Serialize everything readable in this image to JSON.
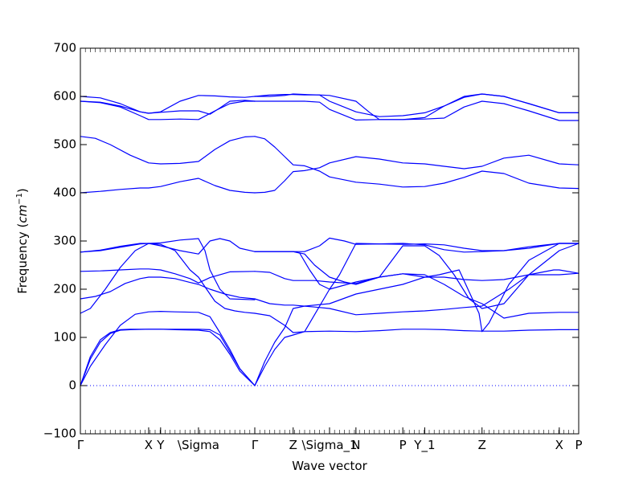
{
  "chart_data": {
    "type": "line",
    "title": "",
    "xlabel": "Wave vector",
    "ylabel": "Frequency (cm⁻¹)",
    "ylabel_main": "Frequency (",
    "ylabel_unit": "cm",
    "ylabel_exp": "−1",
    "ylabel_close": ")",
    "xlim": [
      0,
      1
    ],
    "ylim": [
      -100,
      700
    ],
    "grid": false,
    "legend": "none",
    "line_color": "#0000ff",
    "zero_line_color": "#0000ff",
    "y_ticks": [
      {
        "value": -100,
        "label": "−100"
      },
      {
        "value": 0,
        "label": "0"
      },
      {
        "value": 100,
        "label": "100"
      },
      {
        "value": 200,
        "label": "200"
      },
      {
        "value": 300,
        "label": "300"
      },
      {
        "value": 400,
        "label": "400"
      },
      {
        "value": 500,
        "label": "500"
      },
      {
        "value": 600,
        "label": "600"
      },
      {
        "value": 700,
        "label": "700"
      }
    ],
    "x_ticks": [
      {
        "pos": 0.0,
        "label": "Γ"
      },
      {
        "pos": 0.137,
        "label": "X"
      },
      {
        "pos": 0.161,
        "label": "Y"
      },
      {
        "pos": 0.237,
        "label": "\\Sigma"
      },
      {
        "pos": 0.35,
        "label": "Γ"
      },
      {
        "pos": 0.427,
        "label": "Z"
      },
      {
        "pos": 0.5,
        "label": "\\Sigma_1"
      },
      {
        "pos": 0.553,
        "label": "N"
      },
      {
        "pos": 0.647,
        "label": "P"
      },
      {
        "pos": 0.691,
        "label": "Y_1"
      },
      {
        "pos": 0.806,
        "label": "Z"
      },
      {
        "pos": 0.961,
        "label": "X"
      },
      {
        "pos": 1.0,
        "label": "P"
      }
    ],
    "series": [
      {
        "x": [
          0.0,
          0.02,
          0.04,
          0.06,
          0.08,
          0.1,
          0.137,
          0.161,
          0.19,
          0.237,
          0.26,
          0.28,
          0.3,
          0.32,
          0.35
        ],
        "y": [
          0,
          55,
          90,
          108,
          115,
          116,
          117,
          117,
          116,
          115,
          112,
          95,
          65,
          30,
          0
        ]
      },
      {
        "x": [
          0.0,
          0.02,
          0.04,
          0.06,
          0.08,
          0.1,
          0.137,
          0.161,
          0.19,
          0.237,
          0.26,
          0.28,
          0.3,
          0.32,
          0.35
        ],
        "y": [
          0,
          60,
          95,
          110,
          116,
          117,
          117,
          117,
          117,
          117,
          116,
          105,
          70,
          35,
          0
        ]
      },
      {
        "x": [
          0.0,
          0.02,
          0.05,
          0.08,
          0.11,
          0.137,
          0.161,
          0.19,
          0.237,
          0.26,
          0.28,
          0.3,
          0.32,
          0.35
        ],
        "y": [
          0,
          40,
          85,
          125,
          148,
          153,
          154,
          153,
          152,
          143,
          110,
          75,
          35,
          0
        ]
      },
      {
        "x": [
          0.0,
          0.02,
          0.05,
          0.08,
          0.11,
          0.137,
          0.161,
          0.19,
          0.22,
          0.237,
          0.25,
          0.27,
          0.29,
          0.31,
          0.33,
          0.35
        ],
        "y": [
          150,
          160,
          200,
          245,
          280,
          295,
          293,
          280,
          240,
          225,
          205,
          175,
          160,
          155,
          152,
          150
        ]
      },
      {
        "x": [
          0.0,
          0.03,
          0.06,
          0.09,
          0.12,
          0.137,
          0.161,
          0.19,
          0.22,
          0.237,
          0.26,
          0.29,
          0.32,
          0.35
        ],
        "y": [
          180,
          185,
          195,
          212,
          222,
          225,
          225,
          222,
          214,
          210,
          200,
          190,
          183,
          180
        ]
      },
      {
        "x": [
          0.0,
          0.04,
          0.08,
          0.12,
          0.137,
          0.161,
          0.19,
          0.22,
          0.237,
          0.26,
          0.3,
          0.35
        ],
        "y": [
          237,
          238,
          240,
          242,
          242,
          240,
          232,
          222,
          213,
          224,
          236,
          237
        ]
      },
      {
        "x": [
          0.0,
          0.04,
          0.08,
          0.12,
          0.137,
          0.161,
          0.2,
          0.237,
          0.26,
          0.28,
          0.3,
          0.32,
          0.35
        ],
        "y": [
          277,
          280,
          287,
          294,
          295,
          290,
          280,
          273,
          300,
          305,
          300,
          285,
          278
        ]
      },
      {
        "x": [
          0.0,
          0.04,
          0.08,
          0.12,
          0.137,
          0.161,
          0.2,
          0.237,
          0.25,
          0.26,
          0.28,
          0.3,
          0.35
        ],
        "y": [
          277,
          281,
          289,
          295,
          295,
          296,
          302,
          305,
          280,
          240,
          200,
          180,
          178
        ]
      },
      {
        "x": [
          0.0,
          0.04,
          0.08,
          0.12,
          0.137,
          0.161,
          0.2,
          0.237,
          0.27,
          0.3,
          0.33,
          0.35
        ],
        "y": [
          400,
          403,
          407,
          410,
          410,
          413,
          423,
          430,
          415,
          405,
          401,
          400
        ]
      },
      {
        "x": [
          0.0,
          0.03,
          0.06,
          0.1,
          0.137,
          0.161,
          0.2,
          0.237,
          0.27,
          0.3,
          0.33,
          0.35
        ],
        "y": [
          517,
          513,
          500,
          478,
          462,
          460,
          461,
          465,
          490,
          508,
          516,
          517
        ]
      },
      {
        "x": [
          0.0,
          0.04,
          0.08,
          0.12,
          0.137,
          0.161,
          0.2,
          0.237,
          0.27,
          0.3,
          0.33,
          0.35
        ],
        "y": [
          590,
          587,
          578,
          560,
          552,
          552,
          553,
          552,
          570,
          585,
          590,
          590
        ]
      },
      {
        "x": [
          0.0,
          0.04,
          0.08,
          0.12,
          0.137,
          0.161,
          0.2,
          0.237,
          0.26,
          0.28,
          0.3,
          0.33,
          0.35
        ],
        "y": [
          590,
          588,
          580,
          568,
          565,
          567,
          570,
          570,
          563,
          576,
          590,
          592,
          590
        ]
      },
      {
        "x": [
          0.0,
          0.04,
          0.08,
          0.12,
          0.137,
          0.161,
          0.2,
          0.237,
          0.27,
          0.3,
          0.33,
          0.35
        ],
        "y": [
          600,
          597,
          585,
          568,
          565,
          568,
          590,
          602,
          601,
          599,
          598,
          600
        ]
      },
      {
        "x": [
          0.35,
          0.37,
          0.39,
          0.41,
          0.427,
          0.45,
          0.5,
          0.553,
          0.6,
          0.647,
          0.691,
          0.73,
          0.77,
          0.806,
          0.85,
          0.9,
          0.961,
          1.0
        ],
        "y": [
          0,
          40,
          75,
          100,
          105,
          112,
          113,
          112,
          114,
          117,
          117,
          116,
          114,
          113,
          113,
          115,
          116,
          116
        ]
      },
      {
        "x": [
          0.35,
          0.37,
          0.39,
          0.41,
          0.427,
          0.45,
          0.5,
          0.553,
          0.6,
          0.647,
          0.691,
          0.72,
          0.76,
          0.8,
          0.806,
          0.82,
          0.86,
          0.9,
          0.961,
          1.0
        ],
        "y": [
          0,
          50,
          90,
          120,
          160,
          165,
          170,
          190,
          200,
          210,
          225,
          230,
          240,
          150,
          112,
          130,
          210,
          260,
          295,
          295
        ]
      },
      {
        "x": [
          0.35,
          0.38,
          0.41,
          0.427,
          0.45,
          0.5,
          0.553,
          0.6,
          0.647,
          0.691,
          0.73,
          0.77,
          0.806,
          0.85,
          0.9,
          0.961,
          1.0
        ],
        "y": [
          150,
          145,
          125,
          110,
          112,
          200,
          215,
          225,
          232,
          230,
          210,
          185,
          170,
          140,
          150,
          152,
          152
        ]
      },
      {
        "x": [
          0.35,
          0.38,
          0.41,
          0.427,
          0.47,
          0.5,
          0.553,
          0.6,
          0.647,
          0.691,
          0.73,
          0.77,
          0.806,
          0.86,
          0.9,
          0.95,
          0.961,
          1.0
        ],
        "y": [
          180,
          170,
          167,
          167,
          163,
          160,
          147,
          150,
          153,
          155,
          158,
          162,
          165,
          200,
          230,
          240,
          240,
          233
        ]
      },
      {
        "x": [
          0.35,
          0.38,
          0.41,
          0.427,
          0.47,
          0.5,
          0.53,
          0.553,
          0.6,
          0.647,
          0.691,
          0.73,
          0.77,
          0.806,
          0.85,
          0.9,
          0.961,
          1.0
        ],
        "y": [
          237,
          235,
          222,
          218,
          218,
          215,
          213,
          212,
          225,
          232,
          225,
          225,
          220,
          218,
          220,
          230,
          230,
          233
        ]
      },
      {
        "x": [
          0.35,
          0.38,
          0.41,
          0.427,
          0.45,
          0.47,
          0.5,
          0.53,
          0.553,
          0.6,
          0.647,
          0.691,
          0.72,
          0.75,
          0.78,
          0.806,
          0.85,
          0.9,
          0.961,
          1.0
        ],
        "y": [
          278,
          278,
          278,
          278,
          273,
          250,
          225,
          215,
          210,
          225,
          290,
          290,
          270,
          230,
          180,
          160,
          170,
          230,
          280,
          295
        ]
      },
      {
        "x": [
          0.35,
          0.38,
          0.41,
          0.427,
          0.44,
          0.46,
          0.48,
          0.5,
          0.52,
          0.553,
          0.6,
          0.647,
          0.691,
          0.73,
          0.77,
          0.806,
          0.85,
          0.9,
          0.961,
          1.0
        ],
        "y": [
          278,
          278,
          278,
          278,
          275,
          240,
          210,
          200,
          230,
          295,
          294,
          293,
          294,
          292,
          285,
          280,
          280,
          285,
          295,
          295
        ]
      },
      {
        "x": [
          0.35,
          0.38,
          0.41,
          0.427,
          0.45,
          0.48,
          0.5,
          0.53,
          0.553,
          0.6,
          0.647,
          0.691,
          0.73,
          0.77,
          0.806,
          0.85,
          0.9,
          0.961,
          1.0
        ],
        "y": [
          278,
          278,
          278,
          278,
          278,
          290,
          306,
          300,
          293,
          294,
          295,
          292,
          282,
          277,
          278,
          280,
          288,
          295,
          295
        ]
      },
      {
        "x": [
          0.35,
          0.37,
          0.39,
          0.41,
          0.427,
          0.45,
          0.48,
          0.5,
          0.553,
          0.6,
          0.647,
          0.691,
          0.73,
          0.77,
          0.806,
          0.85,
          0.9,
          0.961,
          1.0
        ],
        "y": [
          400,
          401,
          405,
          425,
          444,
          446,
          452,
          462,
          475,
          470,
          462,
          460,
          455,
          450,
          455,
          472,
          478,
          460,
          458
        ]
      },
      {
        "x": [
          0.35,
          0.37,
          0.39,
          0.41,
          0.427,
          0.45,
          0.48,
          0.5,
          0.553,
          0.6,
          0.647,
          0.691,
          0.73,
          0.77,
          0.806,
          0.85,
          0.9,
          0.961,
          1.0
        ],
        "y": [
          517,
          512,
          495,
          475,
          458,
          456,
          445,
          433,
          422,
          418,
          412,
          413,
          420,
          432,
          445,
          440,
          420,
          410,
          409
        ]
      },
      {
        "x": [
          0.35,
          0.38,
          0.41,
          0.427,
          0.45,
          0.48,
          0.5,
          0.553,
          0.6,
          0.647,
          0.691,
          0.73,
          0.77,
          0.806,
          0.85,
          0.9,
          0.961,
          1.0
        ],
        "y": [
          590,
          590,
          590,
          590,
          590,
          588,
          573,
          551,
          552,
          552,
          553,
          555,
          578,
          590,
          585,
          570,
          550,
          550
        ]
      },
      {
        "x": [
          0.35,
          0.38,
          0.41,
          0.427,
          0.45,
          0.48,
          0.5,
          0.553,
          0.6,
          0.647,
          0.691,
          0.73,
          0.77,
          0.806,
          0.85,
          0.9,
          0.961,
          1.0
        ],
        "y": [
          600,
          600,
          602,
          605,
          604,
          603,
          590,
          568,
          558,
          560,
          566,
          580,
          598,
          605,
          600,
          585,
          566,
          566
        ]
      },
      {
        "x": [
          0.35,
          0.38,
          0.41,
          0.427,
          0.45,
          0.48,
          0.5,
          0.553,
          0.58,
          0.6,
          0.647,
          0.691,
          0.73,
          0.77,
          0.806,
          0.85,
          0.9,
          0.961,
          1.0
        ],
        "y": [
          600,
          603,
          604,
          604,
          603,
          603,
          602,
          590,
          567,
          552,
          552,
          556,
          580,
          600,
          605,
          600,
          585,
          566,
          566
        ]
      }
    ]
  }
}
